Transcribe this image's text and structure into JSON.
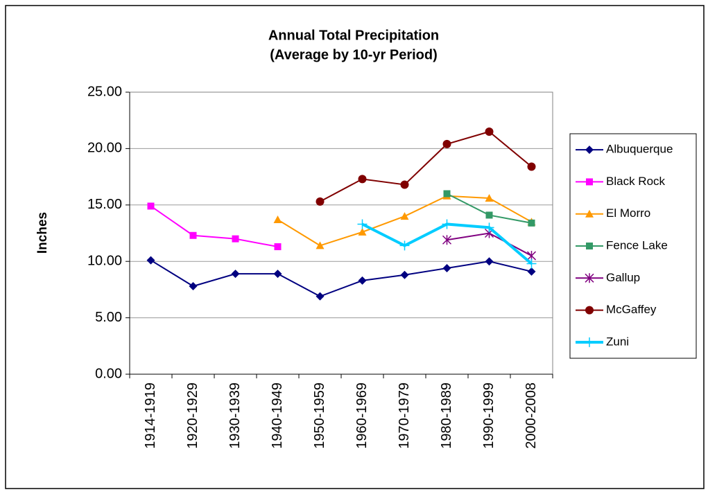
{
  "chart_data": {
    "type": "line",
    "title": "Annual Total Precipitation",
    "subtitle": "(Average by 10-yr Period)",
    "y_label": "Inches",
    "categories": [
      "1914-1919",
      "1920-1929",
      "1930-1939",
      "1940-1949",
      "1950-1959",
      "1960-1969",
      "1970-1979",
      "1980-1989",
      "1990-1999",
      "2000-2008"
    ],
    "series": [
      {
        "name": "Albuquerque",
        "color": "#000080",
        "marker": "diamond",
        "line_width": 2,
        "values": [
          10.1,
          7.8,
          8.9,
          8.9,
          6.9,
          8.3,
          8.8,
          9.4,
          10.0,
          9.1
        ]
      },
      {
        "name": "Black Rock",
        "color": "#ff00ff",
        "marker": "square",
        "line_width": 2,
        "values": [
          14.9,
          12.3,
          12.0,
          11.3,
          null,
          null,
          null,
          null,
          null,
          null
        ]
      },
      {
        "name": "El Morro",
        "color": "#ff9900",
        "marker": "triangle",
        "line_width": 2,
        "values": [
          null,
          null,
          null,
          13.7,
          11.4,
          12.6,
          14.0,
          15.8,
          15.6,
          13.5
        ]
      },
      {
        "name": "Fence Lake",
        "color": "#339966",
        "marker": "square",
        "line_width": 2,
        "values": [
          null,
          null,
          null,
          null,
          null,
          null,
          null,
          16.0,
          14.1,
          13.4
        ]
      },
      {
        "name": "Gallup",
        "color": "#800080",
        "marker": "asterisk",
        "line_width": 2,
        "values": [
          null,
          null,
          null,
          null,
          null,
          null,
          null,
          11.9,
          12.5,
          10.5
        ]
      },
      {
        "name": "McGaffey",
        "color": "#800000",
        "marker": "circle",
        "line_width": 2,
        "values": [
          null,
          null,
          null,
          null,
          15.3,
          17.3,
          16.8,
          20.4,
          21.5,
          18.4
        ]
      },
      {
        "name": "Zuni",
        "color": "#00ccff",
        "marker": "plus",
        "line_width": 4,
        "values": [
          null,
          null,
          null,
          null,
          null,
          13.3,
          11.4,
          13.3,
          13.0,
          9.8
        ]
      }
    ],
    "ylim": [
      0,
      25
    ],
    "yticks": [
      {
        "value": 0,
        "label": "0.00"
      },
      {
        "value": 5,
        "label": "5.00"
      },
      {
        "value": 10,
        "label": "10.00"
      },
      {
        "value": 15,
        "label": "15.00"
      },
      {
        "value": 20,
        "label": "20.00"
      },
      {
        "value": 25,
        "label": "25.00"
      }
    ],
    "grid": true,
    "legend": "right"
  }
}
